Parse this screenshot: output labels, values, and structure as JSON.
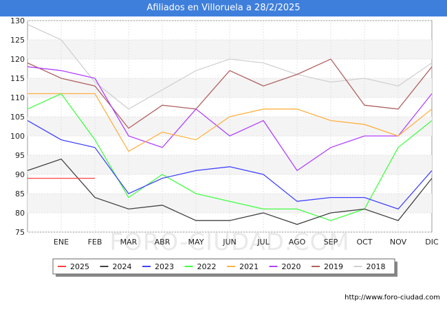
{
  "title": "Afiliados en Villoruela a 28/2/2025",
  "watermark": "FORO-CIUDAD.COM",
  "footer_url": "http://www.foro-ciudad.com",
  "chart_data": {
    "type": "line",
    "title": "Afiliados en Villoruela a 28/2/2025",
    "xlabel": "",
    "ylabel": "",
    "categories": [
      "",
      "ENE",
      "FEB",
      "MAR",
      "ABR",
      "MAY",
      "JUN",
      "JUL",
      "AGO",
      "SEP",
      "OCT",
      "NOV",
      "DIC"
    ],
    "ylim": [
      75,
      130
    ],
    "yticks": [
      75,
      80,
      85,
      90,
      95,
      100,
      105,
      110,
      115,
      120,
      125,
      130
    ],
    "grid": true,
    "legend_position": "bottom",
    "series": [
      {
        "name": "2025",
        "color": "#ff4040",
        "values": [
          89,
          89,
          89,
          null,
          null,
          null,
          null,
          null,
          null,
          null,
          null,
          null,
          null
        ]
      },
      {
        "name": "2024",
        "color": "#404040",
        "values": [
          91,
          94,
          84,
          81,
          82,
          78,
          78,
          80,
          77,
          80,
          81,
          78,
          89
        ]
      },
      {
        "name": "2023",
        "color": "#4040ff",
        "values": [
          104,
          99,
          97,
          85,
          89,
          91,
          92,
          90,
          83,
          84,
          84,
          81,
          91
        ]
      },
      {
        "name": "2022",
        "color": "#40ff40",
        "values": [
          107,
          111,
          99,
          84,
          90,
          85,
          83,
          81,
          81,
          78,
          81,
          97,
          104
        ]
      },
      {
        "name": "2021",
        "color": "#ffb040",
        "values": [
          111,
          111,
          111,
          96,
          101,
          99,
          105,
          107,
          107,
          104,
          103,
          100,
          107
        ]
      },
      {
        "name": "2020",
        "color": "#b040ff",
        "values": [
          118,
          117,
          115,
          100,
          97,
          107,
          100,
          104,
          91,
          97,
          100,
          100,
          111
        ]
      },
      {
        "name": "2019",
        "color": "#b06060",
        "values": [
          119,
          115,
          113,
          102,
          108,
          107,
          117,
          113,
          116,
          120,
          108,
          107,
          118
        ]
      },
      {
        "name": "2018",
        "color": "#d0d0d0",
        "values": [
          129,
          125,
          114,
          107,
          112,
          117,
          120,
          119,
          116,
          114,
          115,
          113,
          119
        ]
      }
    ]
  }
}
